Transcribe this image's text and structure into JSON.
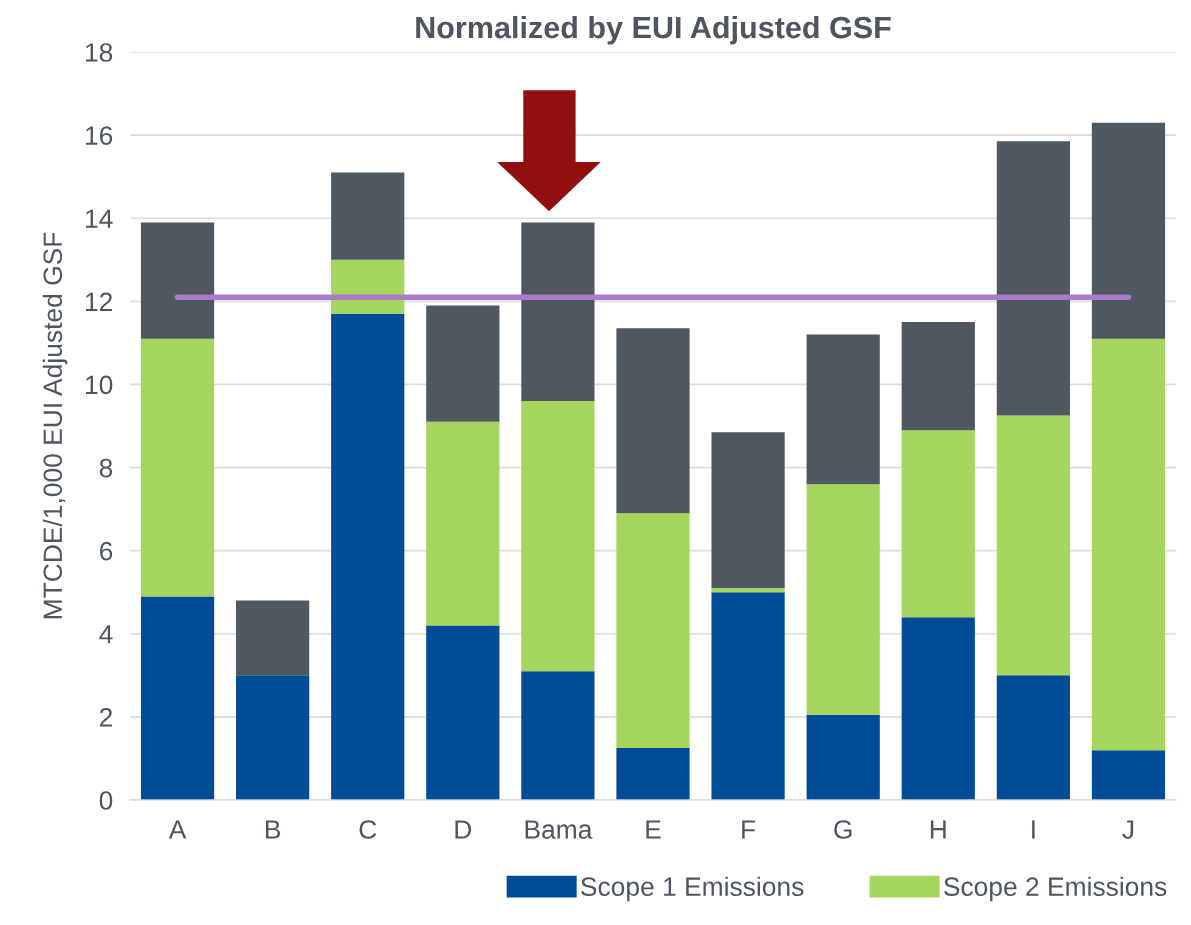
{
  "chart_data": {
    "type": "bar",
    "title": "Normalized by EUI Adjusted GSF",
    "ylabel": "MTCDE/1,000 EUI Adjusted GSF",
    "categories": [
      "A",
      "B",
      "C",
      "D",
      "Bama",
      "E",
      "F",
      "G",
      "H",
      "I",
      "J"
    ],
    "stacked": true,
    "series": [
      {
        "name": "Scope 1 Emissions",
        "color": "#004c97",
        "values": [
          4.9,
          3.0,
          11.7,
          4.2,
          3.1,
          1.25,
          5.0,
          2.05,
          4.4,
          3.0,
          1.2
        ]
      },
      {
        "name": "Scope 2 Emissions",
        "color": "#a5d55d",
        "values": [
          6.2,
          0,
          1.3,
          4.9,
          6.5,
          5.65,
          0.1,
          5.55,
          4.5,
          6.25,
          9.9
        ]
      },
      {
        "color": "#4f5761",
        "values": [
          2.8,
          1.8,
          2.1,
          2.8,
          4.3,
          4.45,
          3.75,
          3.6,
          2.6,
          6.6,
          5.2
        ]
      }
    ],
    "ylim": [
      0,
      18
    ],
    "yticks": [
      0,
      2,
      4,
      6,
      8,
      10,
      12,
      14,
      16,
      18
    ],
    "grid": "y",
    "legend": "bottom",
    "ref_lines": [
      {
        "axis": "y",
        "value": 12.1,
        "color": "#a97cc9"
      }
    ]
  }
}
